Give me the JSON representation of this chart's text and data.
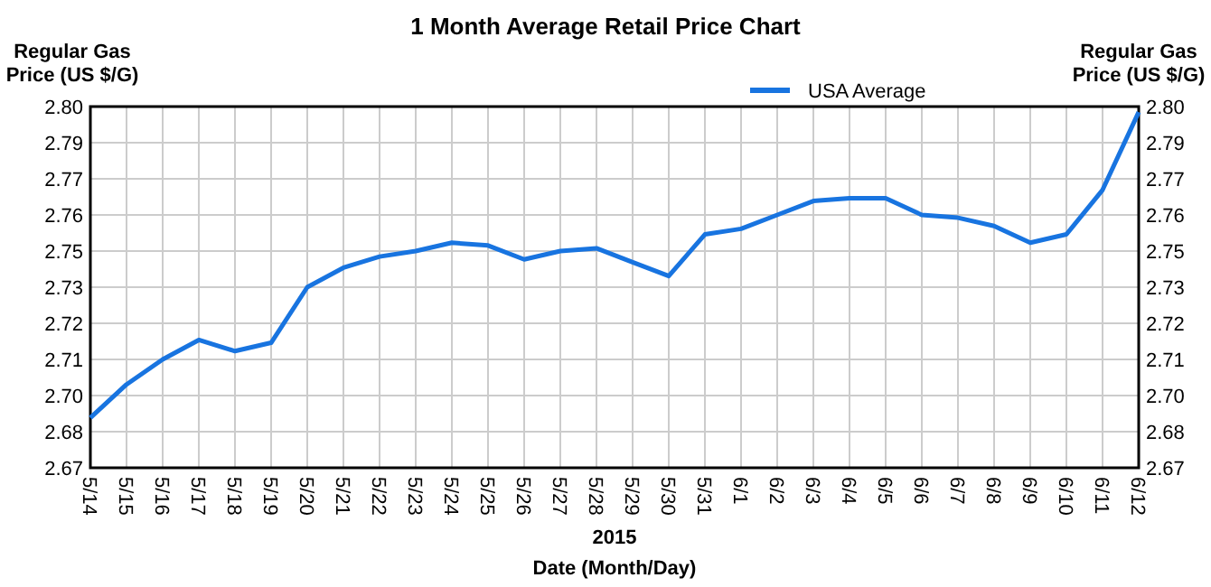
{
  "chart_data": {
    "type": "line",
    "title": "1 Month Average Retail Price Chart",
    "xlabel": "Date (Month/Day)",
    "ylabel": "Regular Gas\nPrice (US $/G)",
    "y2label": "Regular Gas\nPrice (US $/G)",
    "annotations": [
      "2015"
    ],
    "categories": [
      "5/14",
      "5/15",
      "5/16",
      "5/17",
      "5/18",
      "5/19",
      "5/20",
      "5/21",
      "5/22",
      "5/23",
      "5/24",
      "5/25",
      "5/26",
      "5/27",
      "5/28",
      "5/29",
      "5/30",
      "5/31",
      "6/1",
      "6/2",
      "6/3",
      "6/4",
      "6/5",
      "6/6",
      "6/7",
      "6/8",
      "6/9",
      "6/10",
      "6/11",
      "6/12"
    ],
    "series": [
      {
        "name": "USA Average",
        "color": "#1874e0",
        "values": [
          2.688,
          2.7,
          2.709,
          2.716,
          2.712,
          2.715,
          2.735,
          2.742,
          2.746,
          2.748,
          2.751,
          2.75,
          2.745,
          2.748,
          2.749,
          2.744,
          2.739,
          2.754,
          2.756,
          2.761,
          2.766,
          2.767,
          2.767,
          2.761,
          2.76,
          2.757,
          2.751,
          2.754,
          2.77,
          2.798
        ]
      }
    ],
    "ylim": [
      2.67,
      2.8
    ],
    "yticks": [
      2.67,
      {
        "value": 2.683,
        "label": "2.68"
      },
      {
        "value": 2.696,
        "label": "2.70"
      },
      {
        "value": 2.709,
        "label": "2.71"
      },
      {
        "value": 2.722,
        "label": "2.72"
      },
      {
        "value": 2.735,
        "label": "2.73"
      },
      {
        "value": 2.748,
        "label": "2.75"
      },
      {
        "value": 2.761,
        "label": "2.76"
      },
      {
        "value": 2.774,
        "label": "2.77"
      },
      {
        "value": 2.787,
        "label": "2.79"
      },
      {
        "value": 2.8,
        "label": "2.80"
      }
    ],
    "y2lim": [
      2.67,
      2.8
    ],
    "y2ticks": [
      2.67,
      {
        "value": 2.683,
        "label": "2.68"
      },
      {
        "value": 2.696,
        "label": "2.70"
      },
      {
        "value": 2.709,
        "label": "2.71"
      },
      {
        "value": 2.722,
        "label": "2.72"
      },
      {
        "value": 2.735,
        "label": "2.73"
      },
      {
        "value": 2.748,
        "label": "2.75"
      },
      {
        "value": 2.761,
        "label": "2.76"
      },
      {
        "value": 2.774,
        "label": "2.77"
      },
      {
        "value": 2.787,
        "label": "2.79"
      },
      {
        "value": 2.8,
        "label": "2.80"
      }
    ],
    "grid": true,
    "legend": "top",
    "marker": "none",
    "line_style": "solid"
  }
}
